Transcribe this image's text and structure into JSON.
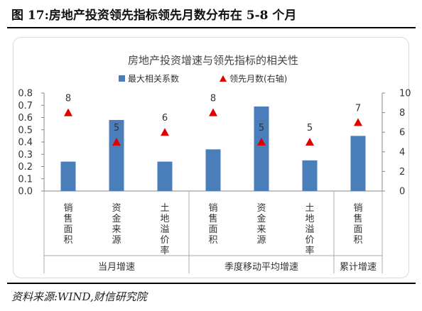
{
  "figure": {
    "title": "图 17:房地产投资领先指标领先月数分布在 5-8 个月",
    "source": "资料来源:WIND,财信研究院"
  },
  "chart_data": {
    "type": "bar",
    "title": "房地产投资增速与领先指标的相关性",
    "categories": [
      "销售面积",
      "资金来源",
      "土地溢价率",
      "销售面积",
      "资金来源",
      "土地溢价率",
      "销售面积"
    ],
    "groups": [
      {
        "label": "当月增速",
        "count": 3
      },
      {
        "label": "季度移动平均增速",
        "count": 3
      },
      {
        "label": "累计增速",
        "count": 1
      }
    ],
    "series": [
      {
        "name": "最大相关系数",
        "type": "bar",
        "axis": "left",
        "color": "#4a7ebb",
        "values": [
          0.24,
          0.58,
          0.24,
          0.34,
          0.69,
          0.25,
          0.45
        ]
      },
      {
        "name": "领先月数(右轴)",
        "type": "marker",
        "axis": "right",
        "color": "#e00000",
        "values": [
          8,
          5,
          6,
          8,
          5,
          5,
          7
        ]
      }
    ],
    "y_left": {
      "min": 0,
      "max": 0.8,
      "ticks": [
        "0.0",
        "0.1",
        "0.2",
        "0.3",
        "0.4",
        "0.5",
        "0.6",
        "0.7",
        "0.8"
      ]
    },
    "y_right": {
      "min": 0,
      "max": 10,
      "ticks": [
        "0",
        "2",
        "4",
        "6",
        "8",
        "10"
      ]
    },
    "legend_position": "top-center",
    "grid": false
  }
}
